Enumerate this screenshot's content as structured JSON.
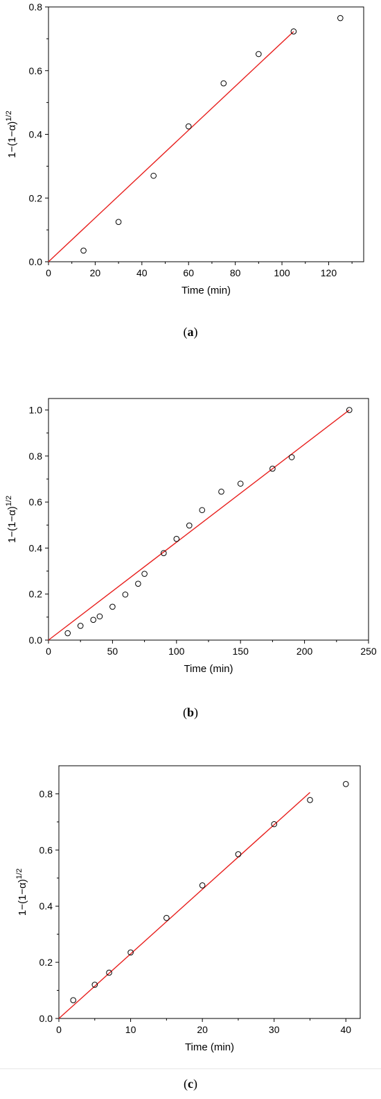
{
  "charts": [
    {
      "id": "a",
      "caption": {
        "open": "(",
        "letter": "a",
        "close": ")"
      },
      "chart_data": {
        "type": "scatter",
        "xlabel": "Time (min)",
        "ylabel_base": "1−(1−α)",
        "ylabel_sup": "1/2",
        "xlim": [
          0,
          135
        ],
        "ylim": [
          0,
          0.8
        ],
        "xticks": [
          0,
          20,
          40,
          60,
          80,
          100,
          120
        ],
        "xtick_labels": [
          "0",
          "20",
          "40",
          "60",
          "80",
          "100",
          "120"
        ],
        "yticks": [
          0,
          0.2,
          0.4,
          0.6,
          0.8
        ],
        "ytick_labels": [
          "0.0",
          "0.2",
          "0.4",
          "0.6",
          "0.8"
        ],
        "points": [
          {
            "x": 15,
            "y": 0.035
          },
          {
            "x": 30,
            "y": 0.125
          },
          {
            "x": 45,
            "y": 0.27
          },
          {
            "x": 60,
            "y": 0.425
          },
          {
            "x": 75,
            "y": 0.56
          },
          {
            "x": 90,
            "y": 0.652
          },
          {
            "x": 105,
            "y": 0.723
          },
          {
            "x": 125,
            "y": 0.765
          }
        ],
        "fit_line": {
          "x": [
            0,
            105
          ],
          "y": [
            0,
            0.723
          ],
          "color": "#e8201e"
        },
        "marker_color": "#000000",
        "grid": false
      }
    },
    {
      "id": "b",
      "caption": {
        "open": "(",
        "letter": "b",
        "close": ")"
      },
      "chart_data": {
        "type": "scatter",
        "xlabel": "Time (min)",
        "ylabel_base": "1−(1−α)",
        "ylabel_sup": "1/2",
        "xlim": [
          0,
          250
        ],
        "ylim": [
          0,
          1.05
        ],
        "xticks": [
          0,
          50,
          100,
          150,
          200,
          250
        ],
        "xtick_labels": [
          "0",
          "50",
          "100",
          "150",
          "200",
          "250"
        ],
        "yticks": [
          0,
          0.2,
          0.4,
          0.6,
          0.8,
          1.0
        ],
        "ytick_labels": [
          "0.0",
          "0.2",
          "0.4",
          "0.6",
          "0.8",
          "1.0"
        ],
        "points": [
          {
            "x": 15,
            "y": 0.03
          },
          {
            "x": 25,
            "y": 0.062
          },
          {
            "x": 35,
            "y": 0.088
          },
          {
            "x": 40,
            "y": 0.103
          },
          {
            "x": 50,
            "y": 0.145
          },
          {
            "x": 60,
            "y": 0.198
          },
          {
            "x": 70,
            "y": 0.245
          },
          {
            "x": 75,
            "y": 0.288
          },
          {
            "x": 90,
            "y": 0.378
          },
          {
            "x": 100,
            "y": 0.44
          },
          {
            "x": 110,
            "y": 0.498
          },
          {
            "x": 120,
            "y": 0.565
          },
          {
            "x": 135,
            "y": 0.645
          },
          {
            "x": 150,
            "y": 0.68
          },
          {
            "x": 175,
            "y": 0.745
          },
          {
            "x": 190,
            "y": 0.795
          },
          {
            "x": 235,
            "y": 1.0
          }
        ],
        "fit_line": {
          "x": [
            0,
            235
          ],
          "y": [
            0,
            1.0
          ],
          "color": "#e8201e"
        },
        "marker_color": "#000000",
        "grid": false
      }
    },
    {
      "id": "c",
      "caption": {
        "open": "(",
        "letter": "c",
        "close": ")"
      },
      "chart_data": {
        "type": "scatter",
        "xlabel": "Time (min)",
        "ylabel_base": "1−(1−α)",
        "ylabel_sup": "1/2",
        "xlim": [
          0,
          42
        ],
        "ylim": [
          0,
          0.9
        ],
        "xticks": [
          0,
          10,
          20,
          30,
          40
        ],
        "xtick_labels": [
          "0",
          "10",
          "20",
          "30",
          "40"
        ],
        "yticks": [
          0,
          0.2,
          0.4,
          0.6,
          0.8
        ],
        "ytick_labels": [
          "0.0",
          "0.2",
          "0.4",
          "0.6",
          "0.8"
        ],
        "points": [
          {
            "x": 2,
            "y": 0.065
          },
          {
            "x": 5,
            "y": 0.12
          },
          {
            "x": 7,
            "y": 0.163
          },
          {
            "x": 10,
            "y": 0.235
          },
          {
            "x": 15,
            "y": 0.358
          },
          {
            "x": 20,
            "y": 0.474
          },
          {
            "x": 25,
            "y": 0.585
          },
          {
            "x": 30,
            "y": 0.692
          },
          {
            "x": 35,
            "y": 0.778
          },
          {
            "x": 40,
            "y": 0.835
          }
        ],
        "fit_line": {
          "x": [
            0,
            35
          ],
          "y": [
            0,
            0.805
          ],
          "color": "#e8201e"
        },
        "marker_color": "#000000",
        "grid": false
      }
    }
  ]
}
